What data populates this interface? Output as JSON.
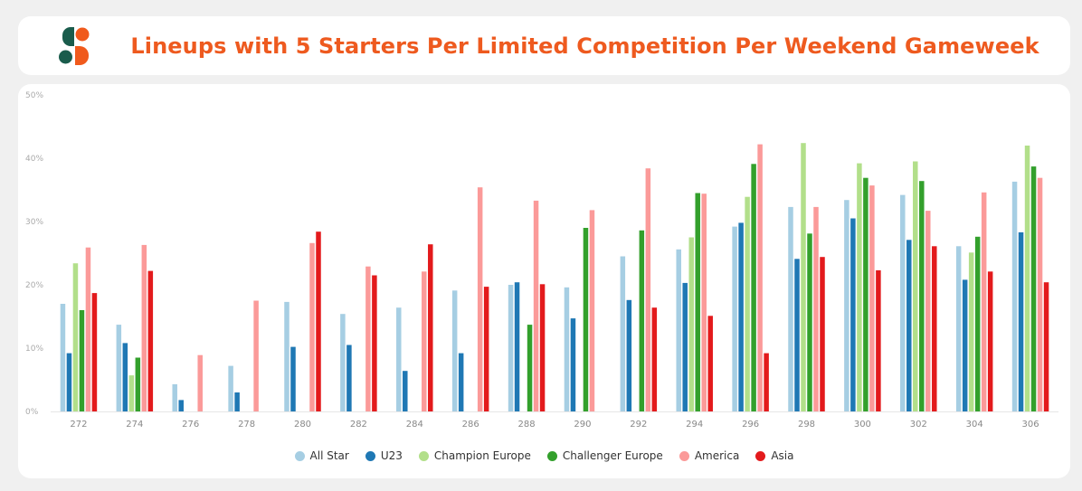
{
  "header": {
    "title": "Lineups with 5 Starters Per Limited Competition Per Weekend Gameweek"
  },
  "chart_data": {
    "type": "bar",
    "title": "Lineups with 5 Starters Per Limited Competition Per Weekend Gameweek",
    "xlabel": "",
    "ylabel": "",
    "ylim": [
      0,
      50
    ],
    "yticks": [
      "0%",
      "10%",
      "20%",
      "30%",
      "40%",
      "50%"
    ],
    "grid": false,
    "legend_position": "bottom",
    "categories": [
      "272",
      "274",
      "276",
      "278",
      "280",
      "282",
      "284",
      "286",
      "288",
      "290",
      "292",
      "294",
      "296",
      "298",
      "300",
      "302",
      "304",
      "306"
    ],
    "series": [
      {
        "name": "All Star",
        "color": "#a6cee3",
        "values": [
          17,
          13.7,
          4.3,
          7.2,
          17.3,
          15.4,
          16.4,
          19.1,
          20,
          19.6,
          24.5,
          25.6,
          29.2,
          32.3,
          33.4,
          34.2,
          26.1,
          36.3
        ]
      },
      {
        "name": "U23",
        "color": "#1f78b4",
        "values": [
          9.2,
          10.8,
          1.8,
          3,
          10.2,
          10.5,
          6.4,
          9.2,
          20.4,
          14.7,
          17.6,
          20.3,
          29.8,
          24.1,
          30.5,
          27.1,
          20.8,
          28.3
        ]
      },
      {
        "name": "Champion Europe",
        "color": "#b2df8a",
        "values": [
          23.4,
          5.7,
          null,
          null,
          null,
          null,
          null,
          null,
          null,
          null,
          null,
          27.5,
          33.9,
          42.4,
          39.2,
          39.5,
          25.1,
          42
        ]
      },
      {
        "name": "Challenger Europe",
        "color": "#33a02c",
        "values": [
          16,
          8.5,
          null,
          null,
          null,
          null,
          null,
          null,
          13.7,
          29,
          28.6,
          34.5,
          39.1,
          28.1,
          36.9,
          36.4,
          27.6,
          38.7
        ]
      },
      {
        "name": "America",
        "color": "#fb9a99",
        "values": [
          25.9,
          26.3,
          8.9,
          17.5,
          26.6,
          22.9,
          22.1,
          35.4,
          33.3,
          31.8,
          38.4,
          34.4,
          42.2,
          32.3,
          35.7,
          31.7,
          34.6,
          36.9
        ]
      },
      {
        "name": "Asia",
        "color": "#e31a1c",
        "values": [
          18.7,
          22.2,
          null,
          null,
          28.4,
          21.5,
          26.4,
          19.7,
          20.1,
          null,
          16.4,
          15.1,
          9.2,
          24.4,
          22.3,
          26.1,
          22.1,
          20.4
        ]
      }
    ]
  }
}
